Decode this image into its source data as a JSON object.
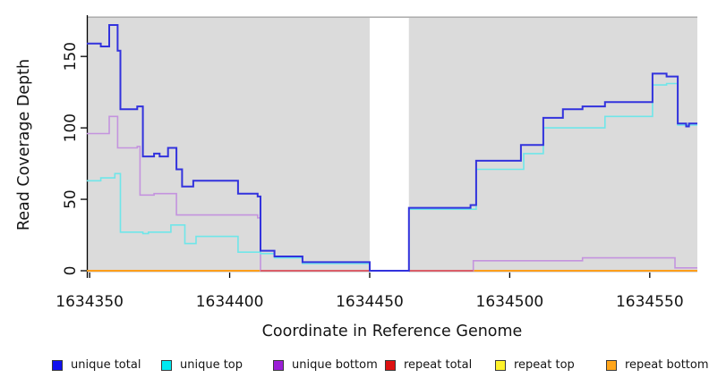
{
  "chart_data": {
    "type": "line",
    "subtype": "step-after",
    "title": "",
    "xlabel": "Coordinate in Reference Genome",
    "ylabel": "Read Coverage Depth",
    "xlim": [
      1634349,
      1634567
    ],
    "ylim": [
      0,
      177
    ],
    "x_ticks": [
      1634350,
      1634400,
      1634450,
      1634500,
      1634550
    ],
    "y_ticks": [
      0,
      50,
      100,
      150
    ],
    "grid": false,
    "legend_position": "bottom",
    "panel": {
      "color": "#dbdbdb",
      "top_border_color": "#a2a2a2",
      "gap_region": [
        1634450,
        1634464
      ]
    },
    "axis_color": "#000000",
    "series": [
      {
        "name": "repeat top",
        "color": "#f5e423",
        "width": 1.6,
        "steps": [
          [
            1634349,
            0
          ],
          [
            1634567,
            0
          ]
        ]
      },
      {
        "name": "repeat bottom",
        "color": "#ff9e1a",
        "width": 2,
        "steps": [
          [
            1634349,
            0
          ],
          [
            1634567,
            0
          ]
        ]
      },
      {
        "name": "unique bottom",
        "color": "#c493de",
        "width": 1.6,
        "steps": [
          [
            1634349,
            96
          ],
          [
            1634357,
            108
          ],
          [
            1634360,
            86
          ],
          [
            1634367,
            87
          ],
          [
            1634368,
            53
          ],
          [
            1634373,
            54
          ],
          [
            1634381,
            39
          ],
          [
            1634410,
            37
          ],
          [
            1634411,
            0
          ],
          [
            1634487,
            7
          ],
          [
            1634526,
            9
          ],
          [
            1634559,
            2
          ],
          [
            1634567,
            2
          ]
        ]
      },
      {
        "name": "repeat total",
        "color": "#d84b63",
        "width": 1.6,
        "steps": [
          [
            1634411,
            0
          ],
          [
            1634487,
            0
          ]
        ]
      },
      {
        "name": "unique top",
        "color": "#6fe6e9",
        "width": 1.6,
        "steps": [
          [
            1634349,
            63
          ],
          [
            1634354,
            65
          ],
          [
            1634359,
            68
          ],
          [
            1634361,
            27
          ],
          [
            1634369,
            26
          ],
          [
            1634371,
            27
          ],
          [
            1634379,
            32
          ],
          [
            1634384,
            19
          ],
          [
            1634388,
            24
          ],
          [
            1634403,
            13
          ],
          [
            1634411,
            12
          ],
          [
            1634416,
            9
          ],
          [
            1634426,
            5
          ],
          [
            1634450,
            0
          ],
          [
            1634464,
            43
          ],
          [
            1634488,
            71
          ],
          [
            1634505,
            82
          ],
          [
            1634512,
            100
          ],
          [
            1634534,
            108
          ],
          [
            1634551,
            130
          ],
          [
            1634556,
            131
          ],
          [
            1634560,
            102
          ],
          [
            1634567,
            102
          ]
        ]
      },
      {
        "name": "unique total",
        "color": "#3232dd",
        "width": 2,
        "steps": [
          [
            1634349,
            159
          ],
          [
            1634354,
            157
          ],
          [
            1634357,
            172
          ],
          [
            1634360,
            154
          ],
          [
            1634361,
            113
          ],
          [
            1634367,
            115
          ],
          [
            1634369,
            80
          ],
          [
            1634373,
            82
          ],
          [
            1634375,
            80
          ],
          [
            1634378,
            86
          ],
          [
            1634381,
            71
          ],
          [
            1634383,
            59
          ],
          [
            1634387,
            63
          ],
          [
            1634403,
            54
          ],
          [
            1634410,
            52
          ],
          [
            1634411,
            14
          ],
          [
            1634416,
            10
          ],
          [
            1634426,
            6
          ],
          [
            1634450,
            0
          ],
          [
            1634464,
            44
          ],
          [
            1634486,
            46
          ],
          [
            1634488,
            77
          ],
          [
            1634504,
            88
          ],
          [
            1634512,
            107
          ],
          [
            1634519,
            113
          ],
          [
            1634526,
            115
          ],
          [
            1634534,
            118
          ],
          [
            1634551,
            138
          ],
          [
            1634556,
            136
          ],
          [
            1634560,
            103
          ],
          [
            1634563,
            101
          ],
          [
            1634564,
            103
          ],
          [
            1634567,
            103
          ]
        ]
      }
    ],
    "legend": [
      {
        "label": "unique total",
        "color": "#1111ee"
      },
      {
        "label": "unique top",
        "color": "#00e8f0"
      },
      {
        "label": "unique bottom",
        "color": "#9b1fd6"
      },
      {
        "label": "repeat total",
        "color": "#dd1111"
      },
      {
        "label": "repeat top",
        "color": "#fff32b"
      },
      {
        "label": "repeat bottom",
        "color": "#ffa51b"
      }
    ]
  }
}
